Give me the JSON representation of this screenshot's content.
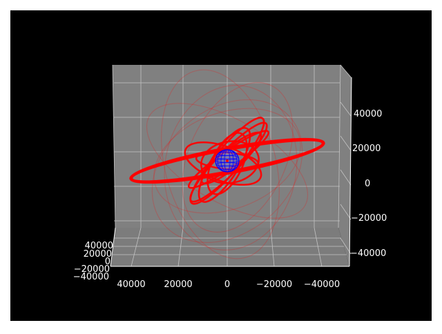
{
  "chart_data": {
    "type": "line",
    "title": "",
    "projection": "3d",
    "background": "#000000",
    "pane_color": "#808080",
    "grid": true,
    "x_ticks": [
      "40000",
      "20000",
      "0",
      "−20000",
      "−40000"
    ],
    "y_ticks": [
      "40000",
      "20000",
      "0",
      "−20000",
      "−40000"
    ],
    "z_ticks": [
      "40000",
      "20000",
      "0",
      "−20000",
      "−40000"
    ],
    "xlim": [
      45000,
      -45000
    ],
    "ylim": [
      -45000,
      45000
    ],
    "zlim": [
      -45000,
      45000
    ],
    "series": [
      {
        "color": "#ff0000",
        "description": "orbit trajectories"
      },
      {
        "color": "#0000ff",
        "description": "central sphere wireframe"
      }
    ]
  }
}
